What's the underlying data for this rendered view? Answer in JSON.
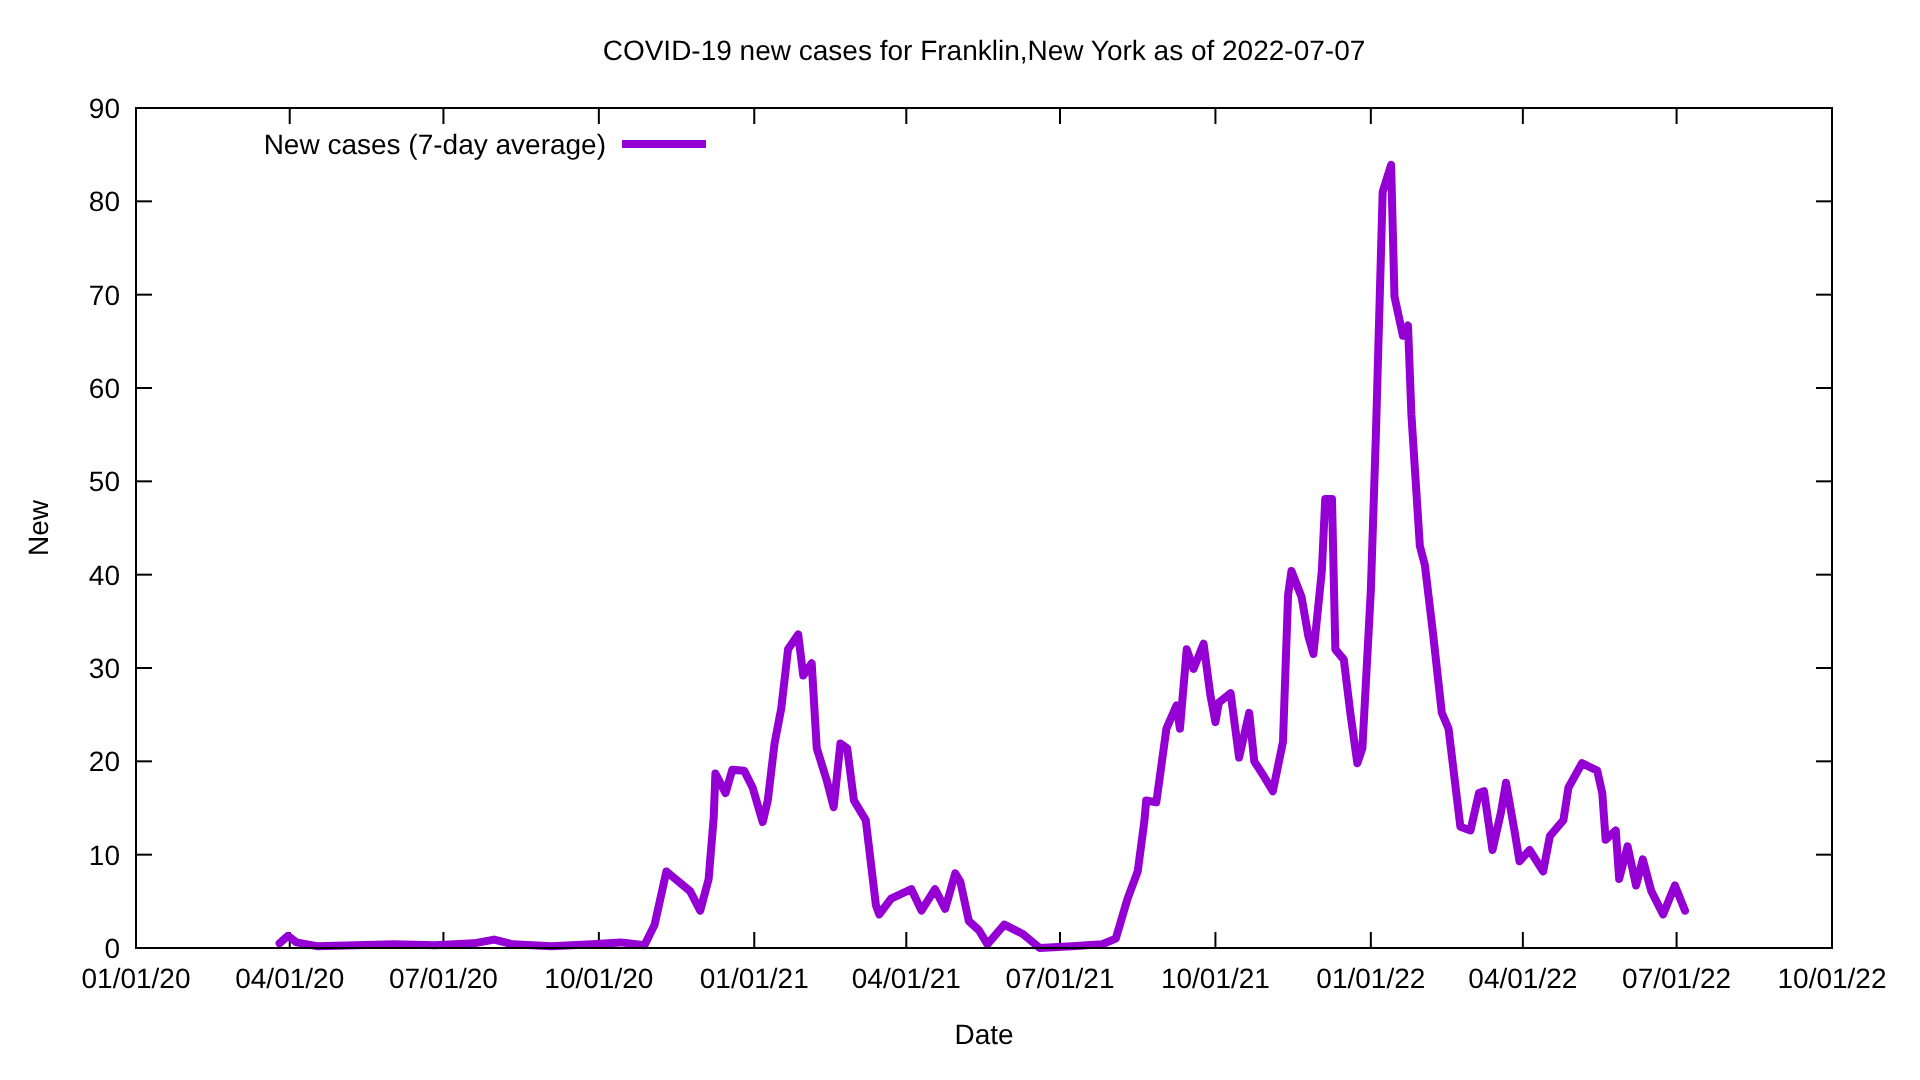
{
  "chart_data": {
    "type": "line",
    "title": "COVID-19 new cases for Franklin,New York as of 2022-07-07",
    "xlabel": "Date",
    "ylabel": "New",
    "xlim": [
      "2020-01-01",
      "2022-10-01"
    ],
    "xticks": [
      {
        "value": "2020-01-01",
        "label": "01/01/20"
      },
      {
        "value": "2020-04-01",
        "label": "04/01/20"
      },
      {
        "value": "2020-07-01",
        "label": "07/01/20"
      },
      {
        "value": "2020-10-01",
        "label": "10/01/20"
      },
      {
        "value": "2021-01-01",
        "label": "01/01/21"
      },
      {
        "value": "2021-04-01",
        "label": "04/01/21"
      },
      {
        "value": "2021-07-01",
        "label": "07/01/21"
      },
      {
        "value": "2021-10-01",
        "label": "10/01/21"
      },
      {
        "value": "2022-01-01",
        "label": "01/01/22"
      },
      {
        "value": "2022-04-01",
        "label": "04/01/22"
      },
      {
        "value": "2022-07-01",
        "label": "07/01/22"
      },
      {
        "value": "2022-10-01",
        "label": "10/01/22"
      }
    ],
    "ylim": [
      0,
      90
    ],
    "yticks": [
      0,
      10,
      20,
      30,
      40,
      50,
      60,
      70,
      80,
      90
    ],
    "grid": false,
    "legend": "top left",
    "series": [
      {
        "name": "New cases (7-day average)",
        "color": "#9400d3",
        "x": [
          "2020-03-26",
          "2020-03-31",
          "2020-04-05",
          "2020-04-17",
          "2020-05-10",
          "2020-06-02",
          "2020-06-26",
          "2020-07-19",
          "2020-07-31",
          "2020-08-11",
          "2020-09-03",
          "2020-09-27",
          "2020-10-14",
          "2020-10-28",
          "2020-11-03",
          "2020-11-10",
          "2020-11-24",
          "2020-11-30",
          "2020-12-05",
          "2020-12-08",
          "2020-12-09",
          "2020-12-15",
          "2020-12-19",
          "2020-12-26",
          "2020-12-31",
          "2021-01-06",
          "2021-01-09",
          "2021-01-13",
          "2021-01-17",
          "2021-01-21",
          "2021-01-27",
          "2021-01-30",
          "2021-02-04",
          "2021-02-07",
          "2021-02-13",
          "2021-02-17",
          "2021-02-21",
          "2021-02-25",
          "2021-03-01",
          "2021-03-08",
          "2021-03-14",
          "2021-03-16",
          "2021-03-23",
          "2021-04-04",
          "2021-04-10",
          "2021-04-18",
          "2021-04-24",
          "2021-04-30",
          "2021-05-03",
          "2021-05-08",
          "2021-05-14",
          "2021-05-19",
          "2021-05-29",
          "2021-06-09",
          "2021-06-19",
          "2021-07-08",
          "2021-07-26",
          "2021-08-03",
          "2021-08-10",
          "2021-08-16",
          "2021-08-20",
          "2021-08-21",
          "2021-08-27",
          "2021-09-02",
          "2021-09-08",
          "2021-09-10",
          "2021-09-14",
          "2021-09-18",
          "2021-09-24",
          "2021-09-28",
          "2021-10-01",
          "2021-10-03",
          "2021-10-10",
          "2021-10-15",
          "2021-10-21",
          "2021-10-24",
          "2021-10-30",
          "2021-11-04",
          "2021-11-10",
          "2021-11-13",
          "2021-11-15",
          "2021-11-21",
          "2021-11-25",
          "2021-11-28",
          "2021-12-03",
          "2021-12-05",
          "2021-12-09",
          "2021-12-11",
          "2021-12-16",
          "2021-12-20",
          "2021-12-24",
          "2021-12-27",
          "2022-01-01",
          "2022-01-04",
          "2022-01-08",
          "2022-01-13",
          "2022-01-15",
          "2022-01-20",
          "2022-01-23",
          "2022-01-25",
          "2022-01-30",
          "2022-02-02",
          "2022-02-07",
          "2022-02-12",
          "2022-02-16",
          "2022-02-23",
          "2022-03-01",
          "2022-03-06",
          "2022-03-09",
          "2022-03-14",
          "2022-03-19",
          "2022-03-22",
          "2022-03-27",
          "2022-03-30",
          "2022-04-05",
          "2022-04-13",
          "2022-04-17",
          "2022-04-25",
          "2022-04-28",
          "2022-05-06",
          "2022-05-15",
          "2022-05-18",
          "2022-05-20",
          "2022-05-26",
          "2022-05-28",
          "2022-06-02",
          "2022-06-07",
          "2022-06-11",
          "2022-06-16",
          "2022-06-23",
          "2022-06-30",
          "2022-07-06"
        ],
        "values": [
          0.5,
          1.3,
          0.6,
          0.2,
          0.3,
          0.4,
          0.3,
          0.5,
          0.9,
          0.4,
          0.2,
          0.4,
          0.6,
          0.3,
          2.5,
          8.2,
          6.1,
          4,
          7.4,
          14,
          18.7,
          16.6,
          19.1,
          19,
          17.2,
          13.5,
          15.8,
          21.9,
          25.7,
          32,
          33.6,
          29.2,
          30.5,
          21.4,
          17.9,
          15.1,
          21.9,
          21.4,
          15.8,
          13.7,
          4.6,
          3.6,
          5.3,
          6.3,
          4,
          6.3,
          4.2,
          8,
          7.1,
          2.9,
          1.9,
          0.4,
          2.5,
          1.5,
          0,
          0.2,
          0.4,
          1,
          5.3,
          8.2,
          13.7,
          15.8,
          15.6,
          23.5,
          26,
          23.5,
          32,
          29.9,
          32.6,
          27.1,
          24.2,
          26.3,
          27.3,
          20.4,
          25.2,
          20,
          18.3,
          16.8,
          22.1,
          37.8,
          40.4,
          37.6,
          33.4,
          31.5,
          40.4,
          48.1,
          48.1,
          32,
          30.9,
          25,
          19.8,
          21.4,
          38.3,
          55,
          81,
          83.9,
          69.8,
          65.6,
          66.7,
          57.2,
          43.1,
          41,
          33.4,
          25.2,
          23.5,
          13,
          12.6,
          16.6,
          16.8,
          10.5,
          14.5,
          17.7,
          12.6,
          9.3,
          10.5,
          8.2,
          12,
          13.7,
          17.2,
          19.8,
          19,
          16.6,
          11.6,
          12.6,
          7.4,
          10.9,
          6.7,
          9.5,
          6.1,
          3.6,
          6.7,
          4
        ]
      }
    ]
  }
}
